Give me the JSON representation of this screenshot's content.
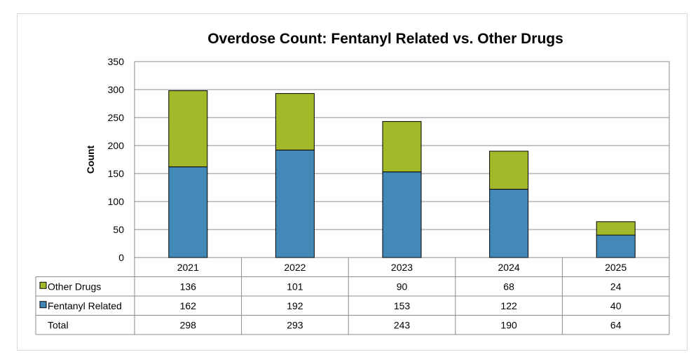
{
  "chart_data": {
    "type": "bar",
    "stacked": true,
    "title": "Overdose Count: Fentanyl Related vs. Other Drugs",
    "xlabel": "",
    "ylabel": "Count",
    "ylim": [
      0,
      350
    ],
    "yticks": [
      0,
      50,
      100,
      150,
      200,
      250,
      300,
      350
    ],
    "grid": true,
    "legend": "data-table",
    "categories": [
      "2021",
      "2022",
      "2023",
      "2024",
      "2025"
    ],
    "series": [
      {
        "name": "Fentanyl Related",
        "color": "#4389b8",
        "values": [
          162,
          192,
          153,
          122,
          40
        ]
      },
      {
        "name": "Other Drugs",
        "color": "#a4b92a",
        "values": [
          136,
          101,
          90,
          68,
          24
        ]
      }
    ],
    "data_table": {
      "rows": [
        {
          "label": "Other Drugs",
          "series": "Other Drugs",
          "values": [
            "136",
            "101",
            "90",
            "68",
            "24"
          ]
        },
        {
          "label": "Fentanyl Related",
          "series": "Fentanyl Related",
          "values": [
            "162",
            "192",
            "153",
            "122",
            "40"
          ]
        },
        {
          "label": "Total",
          "series": null,
          "values": [
            "298",
            "293",
            "243",
            "190",
            "64"
          ]
        }
      ]
    }
  }
}
